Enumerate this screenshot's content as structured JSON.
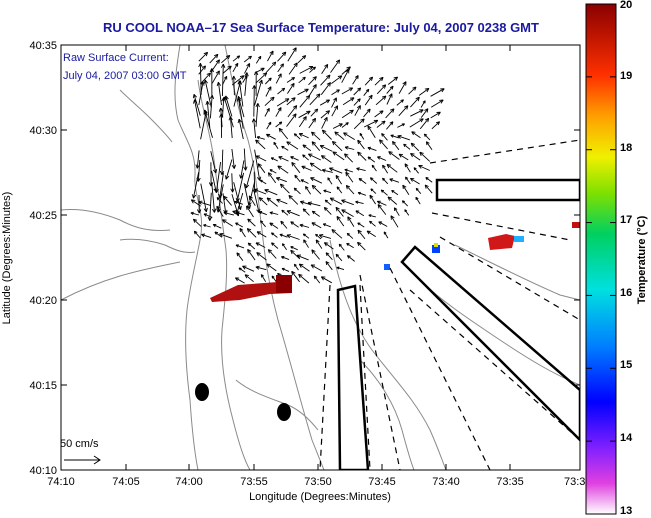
{
  "chart_data": {
    "type": "map",
    "title": "RU COOL  NOAA–17  Sea Surface Temperature:  July 04, 2007 0238 GMT",
    "annotation_line1": "Raw Surface Current:",
    "annotation_line2": "July 04, 2007 03:00 GMT",
    "xlabel": "Longitude (Degrees:Minutes)",
    "ylabel": "Latitude (Degrees:Minutes)",
    "x_ticks": [
      "74:10",
      "74:05",
      "74:00",
      "73:55",
      "73:50",
      "73:45",
      "73:40",
      "73:35",
      "73:3"
    ],
    "y_ticks": [
      "40:35",
      "40:30",
      "40:25",
      "40:20",
      "40:15",
      "40:10"
    ],
    "colorbar": {
      "label": "Temperature (°C)",
      "ticks": [
        "20",
        "19",
        "18",
        "17",
        "16",
        "15",
        "14",
        "13"
      ],
      "range": [
        13,
        20
      ]
    },
    "scale_label": "50 cm/s"
  }
}
